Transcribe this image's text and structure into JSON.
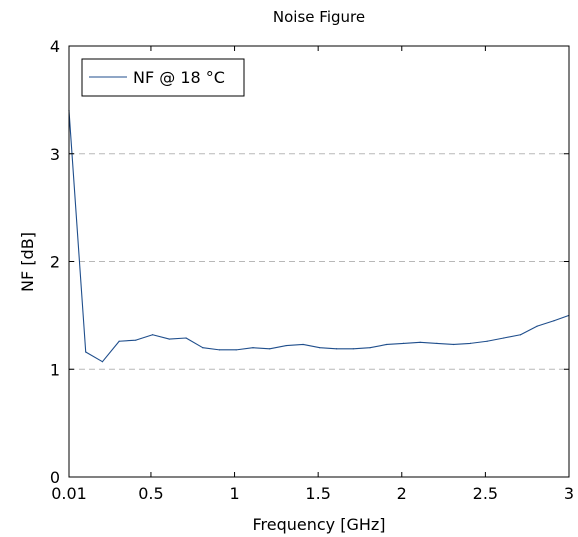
{
  "chart_data": {
    "type": "line",
    "title": "Noise Figure",
    "xlabel": "Frequency [GHz]",
    "ylabel": "NF [dB]",
    "xlim": [
      0.01,
      3
    ],
    "ylim": [
      0,
      4
    ],
    "x_ticks": [
      {
        "value": 0.01,
        "label": "0.01"
      },
      {
        "value": 0.5,
        "label": "0.5"
      },
      {
        "value": 1,
        "label": "1"
      },
      {
        "value": 1.5,
        "label": "1.5"
      },
      {
        "value": 2,
        "label": "2"
      },
      {
        "value": 2.5,
        "label": "2.5"
      },
      {
        "value": 3,
        "label": "3"
      }
    ],
    "y_ticks": [
      {
        "value": 0,
        "label": "0"
      },
      {
        "value": 1,
        "label": "1"
      },
      {
        "value": 2,
        "label": "2"
      },
      {
        "value": 3,
        "label": "3"
      },
      {
        "value": 4,
        "label": "4"
      }
    ],
    "grid": "horizontal dashed",
    "legend_position": "top-left",
    "series": [
      {
        "name": "NF @ 18 °C",
        "color": "#1f4e8c",
        "x": [
          0.01,
          0.11,
          0.21,
          0.31,
          0.41,
          0.51,
          0.61,
          0.71,
          0.81,
          0.91,
          1.01,
          1.11,
          1.21,
          1.31,
          1.41,
          1.51,
          1.61,
          1.71,
          1.81,
          1.91,
          2.01,
          2.11,
          2.21,
          2.31,
          2.41,
          2.51,
          2.61,
          2.71,
          2.81,
          2.91,
          3.0
        ],
        "y": [
          3.4,
          1.16,
          1.07,
          1.26,
          1.27,
          1.32,
          1.28,
          1.29,
          1.2,
          1.18,
          1.18,
          1.2,
          1.19,
          1.22,
          1.23,
          1.2,
          1.19,
          1.19,
          1.2,
          1.23,
          1.24,
          1.25,
          1.24,
          1.23,
          1.24,
          1.26,
          1.29,
          1.32,
          1.4,
          1.45,
          1.5
        ]
      }
    ]
  }
}
